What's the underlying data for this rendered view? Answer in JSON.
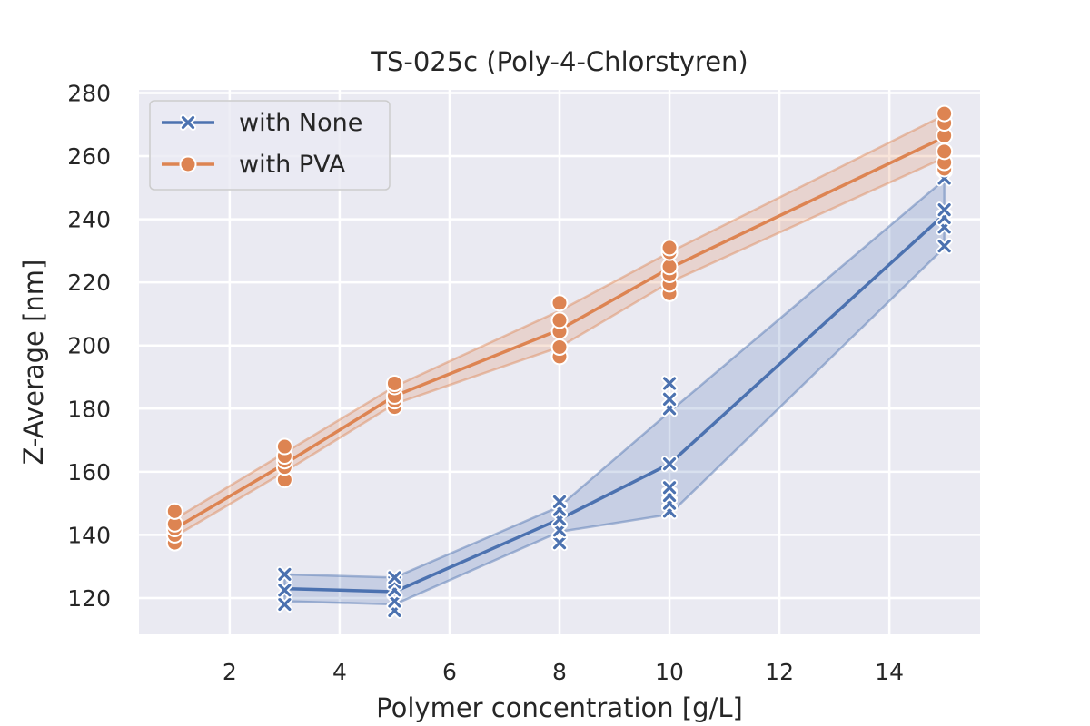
{
  "chart_data": {
    "type": "line",
    "title": "TS-025c (Poly-4-Chlorstyren)",
    "xlabel": "Polymer concentration [g/L]",
    "ylabel": "Z-Average [nm]",
    "xlim": [
      0.35,
      15.65
    ],
    "ylim": [
      108.5,
      281
    ],
    "xticks": [
      2,
      4,
      6,
      8,
      10,
      12,
      14
    ],
    "yticks": [
      120,
      140,
      160,
      180,
      200,
      220,
      240,
      260,
      280
    ],
    "grid": true,
    "legend_position": "top-left",
    "series": [
      {
        "name": "with None",
        "color": "#4c72b0",
        "marker": "x",
        "x": [
          3,
          5,
          8,
          10,
          15
        ],
        "mean": [
          123,
          122,
          145,
          162.5,
          241.5
        ],
        "ci_low": [
          119,
          118,
          141,
          146.5,
          231
        ],
        "ci_high": [
          127.5,
          126.5,
          149,
          179,
          252.5
        ],
        "points": [
          [
            3,
            118
          ],
          [
            3,
            122.5
          ],
          [
            3,
            127.5
          ],
          [
            5,
            116
          ],
          [
            5,
            119
          ],
          [
            5,
            122.5
          ],
          [
            5,
            125
          ],
          [
            5,
            126.5
          ],
          [
            8,
            137.5
          ],
          [
            8,
            141.5
          ],
          [
            8,
            145
          ],
          [
            8,
            148
          ],
          [
            8,
            150.5
          ],
          [
            10,
            147.5
          ],
          [
            10,
            150
          ],
          [
            10,
            152.5
          ],
          [
            10,
            155
          ],
          [
            10,
            162.5
          ],
          [
            10,
            180
          ],
          [
            10,
            183
          ],
          [
            10,
            188
          ],
          [
            15,
            231.5
          ],
          [
            15,
            237.5
          ],
          [
            15,
            240.5
          ],
          [
            15,
            243
          ],
          [
            15,
            253
          ]
        ]
      },
      {
        "name": "with PVA",
        "color": "#dd8452",
        "marker": "o",
        "x": [
          1,
          3,
          5,
          8,
          10,
          15
        ],
        "mean": [
          142,
          162.5,
          184,
          205,
          224.5,
          266
        ],
        "ci_low": [
          139.5,
          160,
          181.5,
          199.5,
          220,
          259.5
        ],
        "ci_high": [
          145,
          166,
          187,
          211,
          229.5,
          273
        ],
        "points": [
          [
            1,
            137.5
          ],
          [
            1,
            140
          ],
          [
            1,
            142
          ],
          [
            1,
            143.5
          ],
          [
            1,
            147.5
          ],
          [
            3,
            157.5
          ],
          [
            3,
            161.5
          ],
          [
            3,
            163.5
          ],
          [
            3,
            165
          ],
          [
            3,
            168
          ],
          [
            5,
            180.5
          ],
          [
            5,
            182.5
          ],
          [
            5,
            184
          ],
          [
            5,
            187
          ],
          [
            5,
            188
          ],
          [
            8,
            196.5
          ],
          [
            8,
            199.5
          ],
          [
            8,
            204.5
          ],
          [
            8,
            208
          ],
          [
            8,
            213.5
          ],
          [
            10,
            216.5
          ],
          [
            10,
            219.5
          ],
          [
            10,
            222.5
          ],
          [
            10,
            225
          ],
          [
            10,
            229.5
          ],
          [
            10,
            231
          ],
          [
            15,
            256
          ],
          [
            15,
            258
          ],
          [
            15,
            261.5
          ],
          [
            15,
            266.5
          ],
          [
            15,
            270.5
          ],
          [
            15,
            273.5
          ]
        ]
      }
    ]
  }
}
